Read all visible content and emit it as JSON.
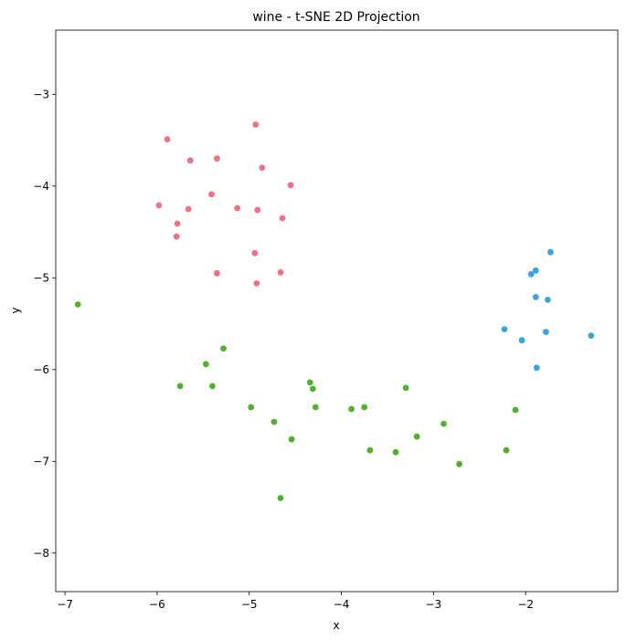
{
  "chart_data": {
    "type": "scatter",
    "title": "wine - t-SNE 2D Projection",
    "xlabel": "x",
    "ylabel": "y",
    "xlim": [
      -7.1,
      -1.0
    ],
    "ylim": [
      -8.42,
      -2.3
    ],
    "xticks": [
      -7,
      -6,
      -5,
      -4,
      -3,
      -2
    ],
    "yticks": [
      -8,
      -7,
      -6,
      -5,
      -4,
      -3
    ],
    "xtick_labels": [
      "−7",
      "−6",
      "−5",
      "−4",
      "−3",
      "−2"
    ],
    "ytick_labels": [
      "−8",
      "−7",
      "−6",
      "−5",
      "−4",
      "−3"
    ],
    "grid": false,
    "legend": "none",
    "series": [
      {
        "color": "#f07086",
        "points": [
          [
            -4.93,
            -3.33
          ],
          [
            -5.89,
            -3.49
          ],
          [
            -5.64,
            -3.72
          ],
          [
            -5.35,
            -3.7
          ],
          [
            -4.86,
            -3.8
          ],
          [
            -4.55,
            -3.99
          ],
          [
            -5.41,
            -4.09
          ],
          [
            -5.98,
            -4.21
          ],
          [
            -5.13,
            -4.24
          ],
          [
            -5.66,
            -4.25
          ],
          [
            -4.91,
            -4.26
          ],
          [
            -4.64,
            -4.35
          ],
          [
            -5.78,
            -4.41
          ],
          [
            -5.79,
            -4.55
          ],
          [
            -4.94,
            -4.73
          ],
          [
            -5.35,
            -4.95
          ],
          [
            -4.66,
            -4.94
          ],
          [
            -4.92,
            -5.06
          ]
        ]
      },
      {
        "color": "#3ba3e0",
        "points": [
          [
            -1.73,
            -4.72
          ],
          [
            -1.89,
            -4.92
          ],
          [
            -1.94,
            -4.96
          ],
          [
            -1.89,
            -5.21
          ],
          [
            -1.76,
            -5.24
          ],
          [
            -2.23,
            -5.56
          ],
          [
            -1.78,
            -5.59
          ],
          [
            -1.29,
            -5.63
          ],
          [
            -2.04,
            -5.68
          ],
          [
            -1.88,
            -5.98
          ]
        ]
      },
      {
        "color": "#4fb12e",
        "points": [
          [
            -6.86,
            -5.29
          ],
          [
            -5.28,
            -5.77
          ],
          [
            -5.47,
            -5.94
          ],
          [
            -5.75,
            -6.18
          ],
          [
            -5.4,
            -6.18
          ],
          [
            -4.34,
            -6.14
          ],
          [
            -4.31,
            -6.21
          ],
          [
            -3.3,
            -6.2
          ],
          [
            -4.98,
            -6.41
          ],
          [
            -4.28,
            -6.41
          ],
          [
            -3.89,
            -6.43
          ],
          [
            -3.75,
            -6.41
          ],
          [
            -2.11,
            -6.44
          ],
          [
            -4.73,
            -6.57
          ],
          [
            -2.89,
            -6.59
          ],
          [
            -4.54,
            -6.76
          ],
          [
            -3.18,
            -6.73
          ],
          [
            -3.69,
            -6.88
          ],
          [
            -3.41,
            -6.9
          ],
          [
            -2.21,
            -6.88
          ],
          [
            -2.72,
            -7.03
          ],
          [
            -4.66,
            -7.4
          ]
        ]
      }
    ]
  }
}
